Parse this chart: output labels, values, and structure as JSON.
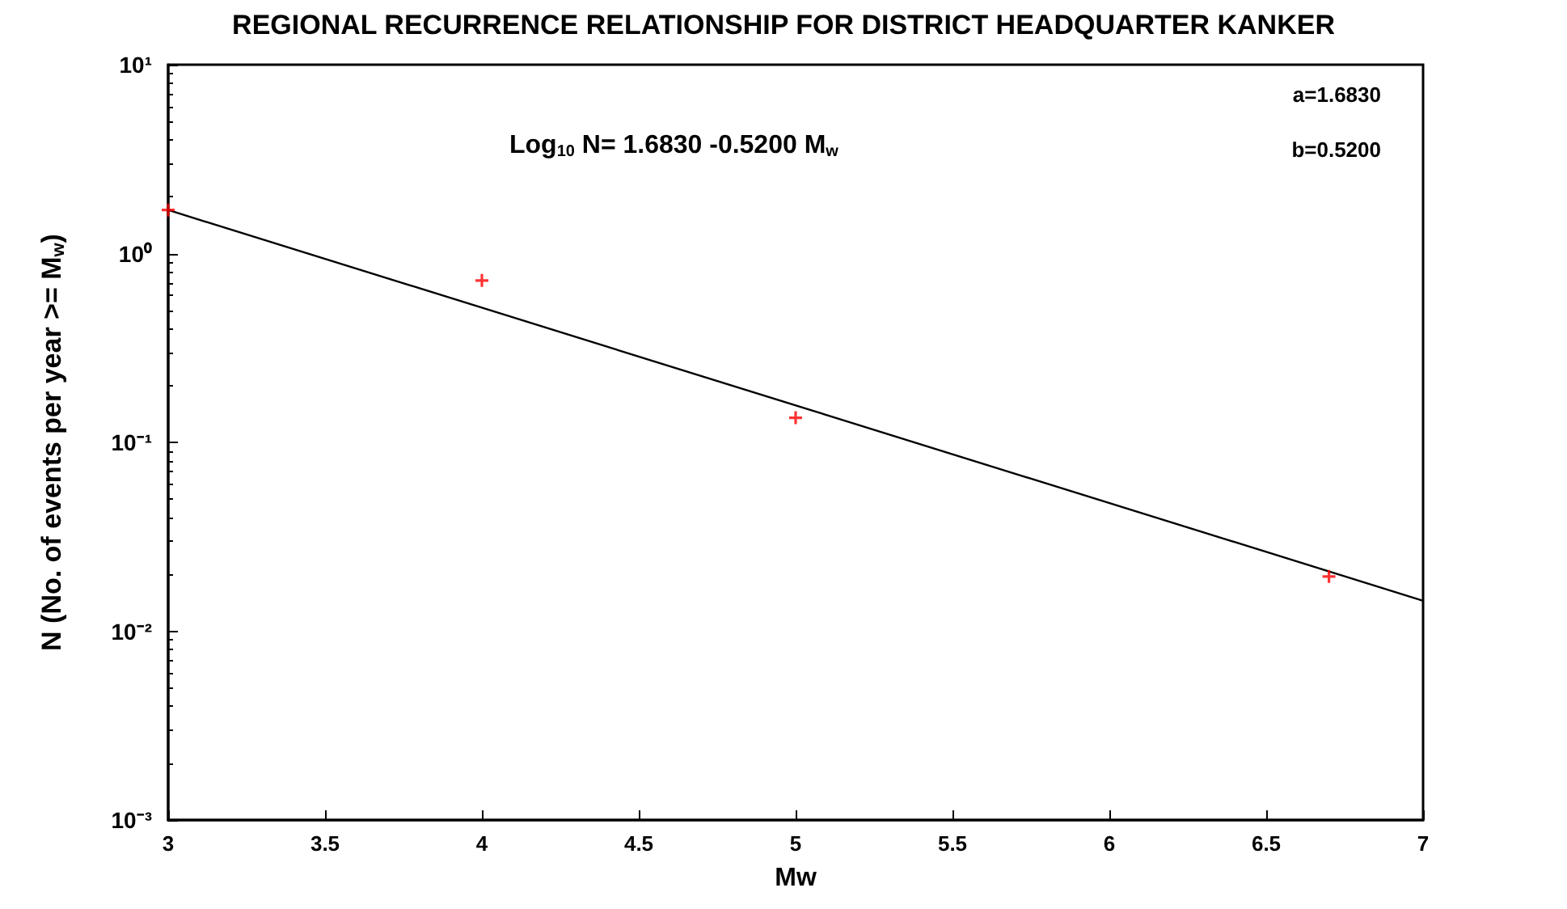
{
  "chart_data": {
    "type": "scatter",
    "title": "REGIONAL RECURRENCE RELATIONSHIP FOR DISTRICT HEADQUARTER KANKER",
    "xlabel": "Mw",
    "ylabel": "N (No. of events per year >= M$_{w}$)",
    "annotations": [
      "Log$_{10}$ N= 1.6830 -0.5200 M$_{w}$",
      "a=1.6830",
      "b=0.5200"
    ],
    "log": "y",
    "grid": false,
    "xlim": [
      3,
      7
    ],
    "xticks": [
      3,
      3.5,
      4,
      4.5,
      5,
      5.5,
      6,
      6.5,
      7
    ],
    "ylim": [
      0.001,
      10
    ],
    "yticks": [
      {
        "value": 0.001,
        "label": "10⁻³"
      },
      {
        "value": 0.01,
        "label": "10⁻²"
      },
      {
        "value": 0.1,
        "label": "10⁻¹"
      },
      {
        "value": 1,
        "label": "10⁰"
      },
      {
        "value": 10,
        "label": "10¹"
      }
    ],
    "series": [
      {
        "color": "#ff0000",
        "marker": "cross",
        "x": [
          3,
          4,
          5,
          6.7
        ],
        "values": [
          1.7,
          0.72,
          0.135,
          0.0195
        ]
      },
      {
        "type": "line",
        "color": "#000000",
        "marker": "none",
        "line_style": "solid",
        "x": [
          3,
          7
        ],
        "values": [
          1.7,
          0.0145
        ]
      }
    ]
  }
}
